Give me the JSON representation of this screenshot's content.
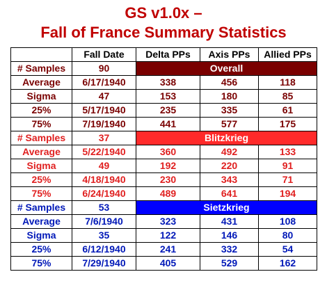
{
  "title_line1": "GS v1.0x –",
  "title_line2": "Fall of France Summary Statistics",
  "columns": [
    "",
    "Fall Date",
    "Delta PPs",
    "Axis PPs",
    "Allied PPs"
  ],
  "colors": {
    "title": "#c00000",
    "overall": "#7a0000",
    "blitzkrieg": "#ff2a2a",
    "sietzkrieg": "#0000ff"
  },
  "groups": [
    {
      "name": "Overall",
      "samples_label": "# Samples",
      "samples": "90",
      "rows": [
        {
          "label": "Average",
          "date": "6/17/1940",
          "delta": "338",
          "axis": "456",
          "allied": "118"
        },
        {
          "label": "Sigma",
          "date": "47",
          "delta": "153",
          "axis": "180",
          "allied": "85"
        },
        {
          "label": "25%",
          "date": "5/17/1940",
          "delta": "235",
          "axis": "335",
          "allied": "61"
        },
        {
          "label": "75%",
          "date": "7/19/1940",
          "delta": "441",
          "axis": "577",
          "allied": "175"
        }
      ]
    },
    {
      "name": "Blitzkrieg",
      "samples_label": "# Samples",
      "samples": "37",
      "rows": [
        {
          "label": "Average",
          "date": "5/22/1940",
          "delta": "360",
          "axis": "492",
          "allied": "133"
        },
        {
          "label": "Sigma",
          "date": "49",
          "delta": "192",
          "axis": "220",
          "allied": "91"
        },
        {
          "label": "25%",
          "date": "4/18/1940",
          "delta": "230",
          "axis": "343",
          "allied": "71"
        },
        {
          "label": "75%",
          "date": "6/24/1940",
          "delta": "489",
          "axis": "641",
          "allied": "194"
        }
      ]
    },
    {
      "name": "Sietzkrieg",
      "samples_label": "# Samples",
      "samples": "53",
      "rows": [
        {
          "label": "Average",
          "date": "7/6/1940",
          "delta": "323",
          "axis": "431",
          "allied": "108"
        },
        {
          "label": "Sigma",
          "date": "35",
          "delta": "122",
          "axis": "146",
          "allied": "80"
        },
        {
          "label": "25%",
          "date": "6/12/1940",
          "delta": "241",
          "axis": "332",
          "allied": "54"
        },
        {
          "label": "75%",
          "date": "7/29/1940",
          "delta": "405",
          "axis": "529",
          "allied": "162"
        }
      ]
    }
  ]
}
